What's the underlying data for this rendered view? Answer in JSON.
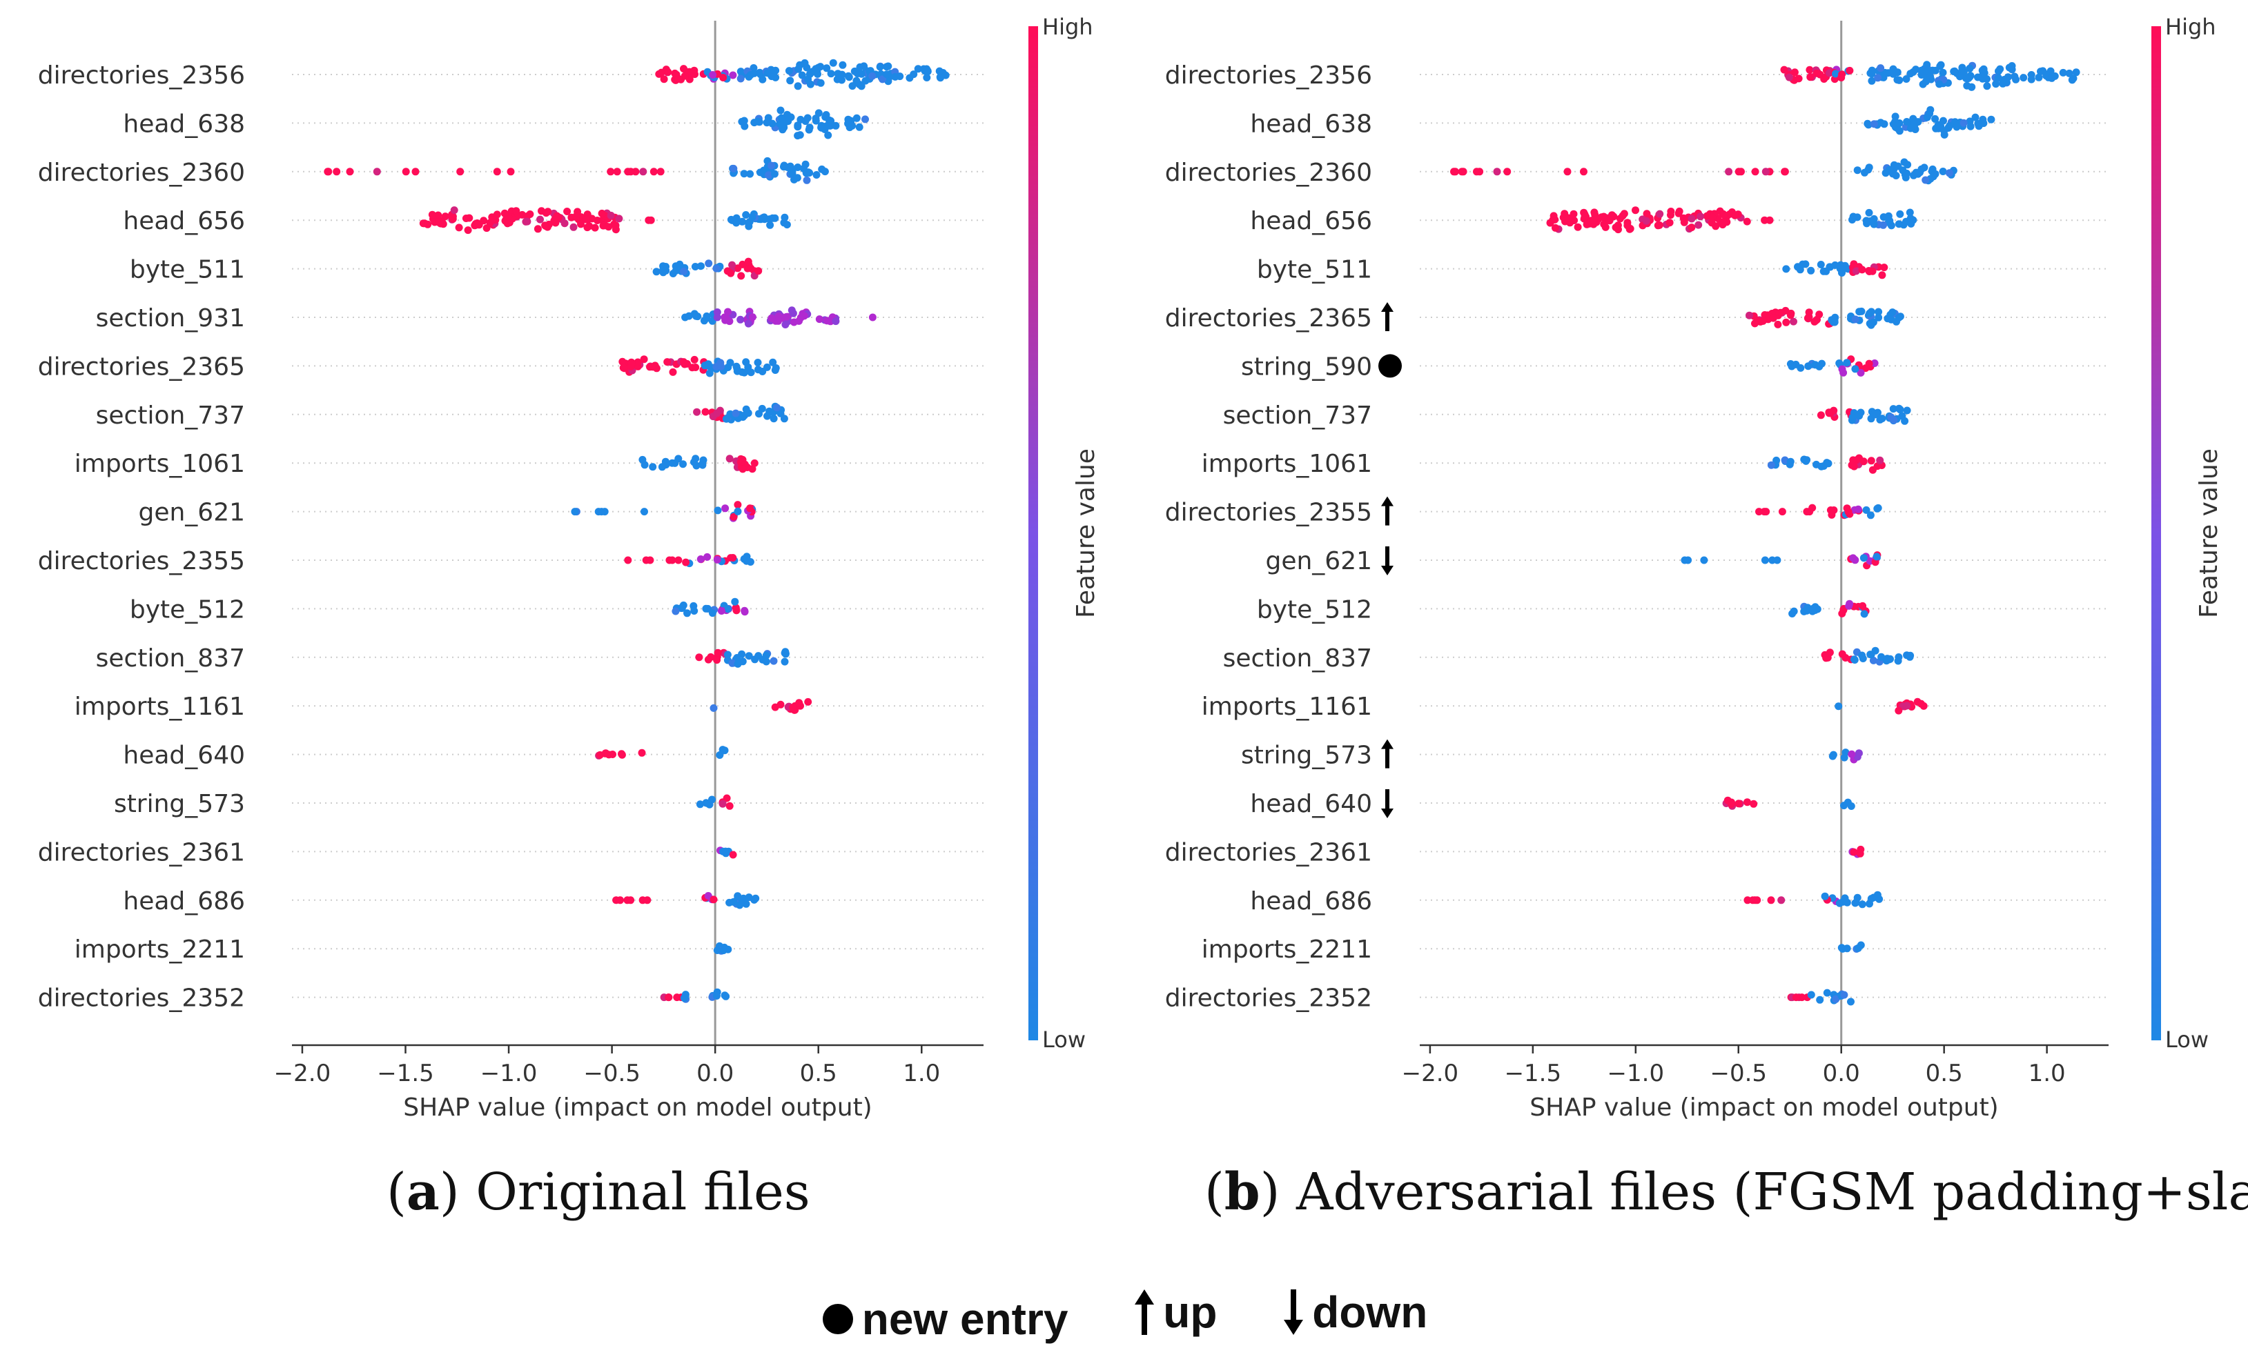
{
  "chart_data": [
    {
      "type": "scatter",
      "subtype": "shap-beeswarm",
      "panel_label": "a",
      "caption": "Original files",
      "xlabel": "SHAP value (impact on model output)",
      "xlim": [
        -2.05,
        1.3
      ],
      "xticks": [
        "−2.0",
        "−1.5",
        "−1.0",
        "−0.5",
        "0.0",
        "0.5",
        "1.0"
      ],
      "xtick_values": [
        -2.0,
        -1.5,
        -1.0,
        -0.5,
        0.0,
        0.5,
        1.0
      ],
      "colorbar": {
        "label": "Feature value",
        "high": "High",
        "low": "Low"
      },
      "features": [
        {
          "name": "directories_2356",
          "marker": ""
        },
        {
          "name": "head_638",
          "marker": ""
        },
        {
          "name": "directories_2360",
          "marker": ""
        },
        {
          "name": "head_656",
          "marker": ""
        },
        {
          "name": "byte_511",
          "marker": ""
        },
        {
          "name": "section_931",
          "marker": ""
        },
        {
          "name": "directories_2365",
          "marker": ""
        },
        {
          "name": "section_737",
          "marker": ""
        },
        {
          "name": "imports_1061",
          "marker": ""
        },
        {
          "name": "gen_621",
          "marker": ""
        },
        {
          "name": "directories_2355",
          "marker": ""
        },
        {
          "name": "byte_512",
          "marker": ""
        },
        {
          "name": "section_837",
          "marker": ""
        },
        {
          "name": "imports_1161",
          "marker": ""
        },
        {
          "name": "head_640",
          "marker": ""
        },
        {
          "name": "string_573",
          "marker": ""
        },
        {
          "name": "directories_2361",
          "marker": ""
        },
        {
          "name": "head_686",
          "marker": ""
        },
        {
          "name": "imports_2211",
          "marker": ""
        },
        {
          "name": "directories_2352",
          "marker": ""
        }
      ],
      "clusters": [
        [
          [
            -0.3,
            -0.05,
            14,
            "high"
          ],
          [
            -0.05,
            0.1,
            12,
            "mix"
          ],
          [
            0.1,
            0.35,
            14,
            "low"
          ],
          [
            0.35,
            0.85,
            22,
            "low"
          ],
          [
            0.85,
            1.15,
            10,
            "low"
          ]
        ],
        [
          [
            0.1,
            0.25,
            8,
            "low"
          ],
          [
            0.25,
            0.55,
            22,
            "low"
          ],
          [
            0.55,
            0.75,
            12,
            "low"
          ]
        ],
        [
          [
            -1.95,
            -0.9,
            10,
            "highs"
          ],
          [
            -0.55,
            -0.25,
            8,
            "highs"
          ],
          [
            0.05,
            0.25,
            8,
            "low"
          ],
          [
            0.25,
            0.45,
            20,
            "low"
          ],
          [
            0.45,
            0.55,
            8,
            "low"
          ]
        ],
        [
          [
            -1.45,
            -0.45,
            18,
            "high"
          ],
          [
            -0.4,
            -0.28,
            2,
            "highs"
          ],
          [
            0.05,
            0.35,
            14,
            "low"
          ]
        ],
        [
          [
            -0.3,
            0.05,
            10,
            "low"
          ],
          [
            0.05,
            0.22,
            14,
            "high"
          ]
        ],
        [
          [
            -0.15,
            0.0,
            12,
            "low"
          ],
          [
            0.0,
            0.6,
            14,
            "purple"
          ],
          [
            0.75,
            0.78,
            1,
            "purples"
          ]
        ],
        [
          [
            -0.45,
            -0.05,
            14,
            "high"
          ],
          [
            -0.05,
            0.3,
            14,
            "low"
          ]
        ],
        [
          [
            -0.1,
            0.05,
            10,
            "high"
          ],
          [
            0.05,
            0.35,
            14,
            "low"
          ]
        ],
        [
          [
            -0.38,
            -0.05,
            8,
            "low"
          ],
          [
            0.05,
            0.2,
            14,
            "high"
          ]
        ],
        [
          [
            -0.8,
            -0.3,
            6,
            "lows"
          ],
          [
            0.0,
            0.18,
            12,
            "mix"
          ]
        ],
        [
          [
            -0.45,
            -0.15,
            6,
            "highs"
          ],
          [
            -0.15,
            0.1,
            8,
            "mix"
          ],
          [
            0.1,
            0.18,
            8,
            "low"
          ]
        ],
        [
          [
            -0.25,
            0.0,
            8,
            "low"
          ],
          [
            0.0,
            0.15,
            12,
            "mix"
          ]
        ],
        [
          [
            -0.08,
            0.05,
            10,
            "high"
          ],
          [
            0.05,
            0.35,
            12,
            "low"
          ]
        ],
        [
          [
            -0.02,
            0.0,
            10,
            "low"
          ],
          [
            0.25,
            0.45,
            10,
            "high"
          ]
        ],
        [
          [
            -0.6,
            -0.35,
            6,
            "high"
          ],
          [
            0.0,
            0.05,
            10,
            "low"
          ]
        ],
        [
          [
            -0.08,
            0.03,
            8,
            "low"
          ],
          [
            0.03,
            0.1,
            10,
            "high"
          ]
        ],
        [
          [
            0.0,
            0.1,
            10,
            "mix"
          ]
        ],
        [
          [
            -0.5,
            -0.28,
            6,
            "highs"
          ],
          [
            -0.1,
            0.0,
            8,
            "mix"
          ],
          [
            0.0,
            0.2,
            10,
            "low"
          ]
        ],
        [
          [
            0.0,
            0.1,
            10,
            "low"
          ]
        ],
        [
          [
            -0.25,
            -0.15,
            6,
            "highs"
          ],
          [
            -0.15,
            0.0,
            8,
            "low"
          ],
          [
            0.0,
            0.06,
            10,
            "low"
          ]
        ]
      ]
    },
    {
      "type": "scatter",
      "subtype": "shap-beeswarm",
      "panel_label": "b",
      "caption": "Adversarial files (FGSM padding+slack)",
      "xlabel": "SHAP value (impact on model output)",
      "xlim": [
        -2.05,
        1.3
      ],
      "xticks": [
        "−2.0",
        "−1.5",
        "−1.0",
        "−0.5",
        "0.0",
        "0.5",
        "1.0"
      ],
      "xtick_values": [
        -2.0,
        -1.5,
        -1.0,
        -0.5,
        0.0,
        0.5,
        1.0
      ],
      "colorbar": {
        "label": "Feature value",
        "high": "High",
        "low": "Low"
      },
      "features": [
        {
          "name": "directories_2356",
          "marker": ""
        },
        {
          "name": "head_638",
          "marker": ""
        },
        {
          "name": "directories_2360",
          "marker": ""
        },
        {
          "name": "head_656",
          "marker": ""
        },
        {
          "name": "byte_511",
          "marker": ""
        },
        {
          "name": "directories_2365",
          "marker": "up"
        },
        {
          "name": "string_590",
          "marker": "new"
        },
        {
          "name": "section_737",
          "marker": ""
        },
        {
          "name": "imports_1061",
          "marker": ""
        },
        {
          "name": "directories_2355",
          "marker": "up"
        },
        {
          "name": "gen_621",
          "marker": "down"
        },
        {
          "name": "byte_512",
          "marker": ""
        },
        {
          "name": "section_837",
          "marker": ""
        },
        {
          "name": "imports_1161",
          "marker": ""
        },
        {
          "name": "string_573",
          "marker": "up"
        },
        {
          "name": "head_640",
          "marker": "down"
        },
        {
          "name": "directories_2361",
          "marker": ""
        },
        {
          "name": "head_686",
          "marker": ""
        },
        {
          "name": "imports_2211",
          "marker": ""
        },
        {
          "name": "directories_2352",
          "marker": ""
        }
      ],
      "clusters": [
        [
          [
            -0.3,
            -0.05,
            14,
            "high"
          ],
          [
            -0.05,
            0.1,
            12,
            "mix"
          ],
          [
            0.1,
            0.35,
            14,
            "low"
          ],
          [
            0.35,
            0.85,
            22,
            "low"
          ],
          [
            0.85,
            1.15,
            10,
            "low"
          ]
        ],
        [
          [
            0.1,
            0.25,
            8,
            "low"
          ],
          [
            0.25,
            0.55,
            22,
            "low"
          ],
          [
            0.55,
            0.75,
            12,
            "low"
          ]
        ],
        [
          [
            -1.95,
            -0.9,
            10,
            "highs"
          ],
          [
            -0.55,
            -0.25,
            8,
            "highs"
          ],
          [
            0.05,
            0.25,
            8,
            "low"
          ],
          [
            0.25,
            0.45,
            20,
            "low"
          ],
          [
            0.45,
            0.55,
            8,
            "low"
          ]
        ],
        [
          [
            -1.42,
            -0.45,
            18,
            "high"
          ],
          [
            -0.4,
            -0.28,
            2,
            "highs"
          ],
          [
            0.05,
            0.35,
            14,
            "low"
          ]
        ],
        [
          [
            -0.3,
            0.05,
            10,
            "low"
          ],
          [
            0.05,
            0.22,
            14,
            "high"
          ]
        ],
        [
          [
            -0.45,
            -0.05,
            14,
            "high"
          ],
          [
            -0.05,
            0.3,
            14,
            "low"
          ]
        ],
        [
          [
            -0.25,
            0.0,
            8,
            "low"
          ],
          [
            0.0,
            0.18,
            12,
            "mix"
          ]
        ],
        [
          [
            -0.1,
            0.05,
            10,
            "high"
          ],
          [
            0.05,
            0.35,
            14,
            "low"
          ]
        ],
        [
          [
            -0.38,
            -0.05,
            8,
            "low"
          ],
          [
            0.05,
            0.2,
            14,
            "high"
          ]
        ],
        [
          [
            -0.45,
            -0.15,
            6,
            "highs"
          ],
          [
            -0.15,
            0.1,
            8,
            "mix"
          ],
          [
            0.1,
            0.18,
            8,
            "low"
          ]
        ],
        [
          [
            -0.8,
            -0.3,
            6,
            "lows"
          ],
          [
            0.0,
            0.18,
            12,
            "mix"
          ]
        ],
        [
          [
            -0.25,
            0.0,
            8,
            "low"
          ],
          [
            0.0,
            0.15,
            12,
            "mix"
          ]
        ],
        [
          [
            -0.08,
            0.05,
            10,
            "high"
          ],
          [
            0.05,
            0.35,
            12,
            "low"
          ]
        ],
        [
          [
            -0.02,
            0.0,
            10,
            "low"
          ],
          [
            0.25,
            0.45,
            10,
            "high"
          ]
        ],
        [
          [
            -0.08,
            0.03,
            6,
            "low"
          ],
          [
            0.03,
            0.1,
            10,
            "purple"
          ]
        ],
        [
          [
            -0.6,
            -0.35,
            6,
            "high"
          ],
          [
            0.0,
            0.05,
            10,
            "low"
          ]
        ],
        [
          [
            0.0,
            0.1,
            10,
            "mix"
          ]
        ],
        [
          [
            -0.5,
            -0.28,
            6,
            "highs"
          ],
          [
            -0.1,
            0.0,
            8,
            "mix"
          ],
          [
            0.0,
            0.2,
            10,
            "low"
          ]
        ],
        [
          [
            0.0,
            0.1,
            10,
            "low"
          ]
        ],
        [
          [
            -0.25,
            -0.15,
            6,
            "highs"
          ],
          [
            -0.15,
            0.0,
            8,
            "low"
          ],
          [
            0.0,
            0.06,
            10,
            "low"
          ]
        ]
      ]
    }
  ],
  "legend": {
    "new_entry": "new entry",
    "up": "up",
    "down": "down"
  },
  "colors": {
    "high": "#ff0d57",
    "low": "#1e88e5",
    "purple": "#b12ad0",
    "zero_line": "#999999",
    "axis": "#333333"
  }
}
